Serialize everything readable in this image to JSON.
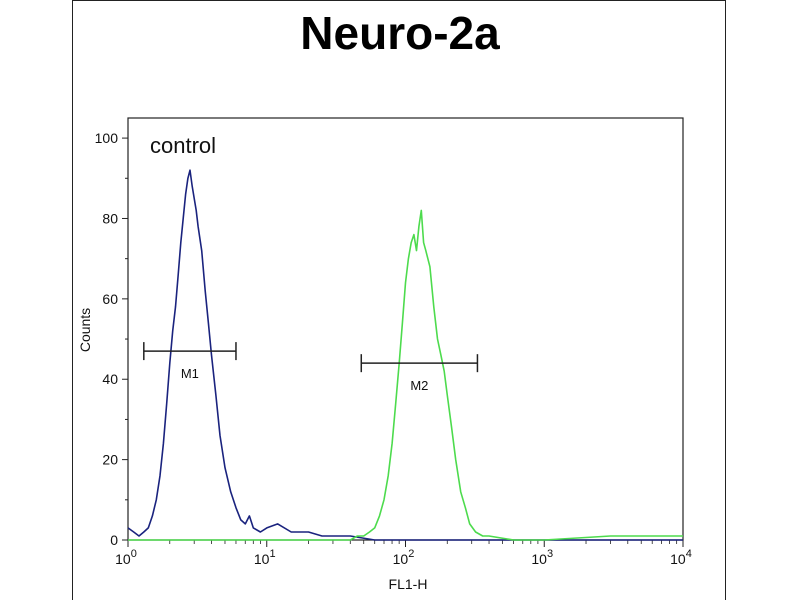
{
  "chart_data": {
    "type": "line",
    "title": "Neuro-2a",
    "xlabel": "FL1-H",
    "ylabel": "Counts",
    "xscale": "log",
    "xlim": [
      1,
      10000
    ],
    "ylim": [
      0,
      105
    ],
    "yticks": [
      "0",
      "20",
      "40",
      "60",
      "80",
      "100"
    ],
    "xticks": [
      {
        "base": "10",
        "exp": "0"
      },
      {
        "base": "10",
        "exp": "1"
      },
      {
        "base": "10",
        "exp": "2"
      },
      {
        "base": "10",
        "exp": "3"
      },
      {
        "base": "10",
        "exp": "4"
      }
    ],
    "annotation": "control",
    "series": [
      {
        "color": "#1a237e",
        "points": [
          [
            1.0,
            3
          ],
          [
            1.1,
            2
          ],
          [
            1.2,
            1
          ],
          [
            1.3,
            2
          ],
          [
            1.4,
            3
          ],
          [
            1.5,
            6
          ],
          [
            1.6,
            10
          ],
          [
            1.7,
            16
          ],
          [
            1.8,
            24
          ],
          [
            1.9,
            34
          ],
          [
            2.0,
            44
          ],
          [
            2.1,
            52
          ],
          [
            2.2,
            58
          ],
          [
            2.3,
            66
          ],
          [
            2.4,
            74
          ],
          [
            2.5,
            80
          ],
          [
            2.6,
            86
          ],
          [
            2.7,
            90
          ],
          [
            2.8,
            92
          ],
          [
            2.9,
            88
          ],
          [
            3.0,
            85
          ],
          [
            3.1,
            82
          ],
          [
            3.2,
            78
          ],
          [
            3.4,
            72
          ],
          [
            3.6,
            62
          ],
          [
            3.8,
            54
          ],
          [
            4.0,
            46
          ],
          [
            4.3,
            36
          ],
          [
            4.6,
            26
          ],
          [
            5.0,
            18
          ],
          [
            5.5,
            12
          ],
          [
            6.0,
            8
          ],
          [
            6.5,
            5
          ],
          [
            7.0,
            4
          ],
          [
            7.5,
            6
          ],
          [
            8.0,
            3
          ],
          [
            9.0,
            2
          ],
          [
            10,
            3
          ],
          [
            12,
            4
          ],
          [
            15,
            2
          ],
          [
            20,
            2
          ],
          [
            25,
            1
          ],
          [
            30,
            1
          ],
          [
            40,
            1
          ],
          [
            60,
            0
          ],
          [
            100,
            0
          ],
          [
            1000,
            0
          ],
          [
            10000,
            0
          ]
        ]
      },
      {
        "color": "#4ddb4d",
        "points": [
          [
            1.0,
            0
          ],
          [
            10,
            0
          ],
          [
            40,
            0
          ],
          [
            45,
            1
          ],
          [
            50,
            1
          ],
          [
            55,
            2
          ],
          [
            60,
            3
          ],
          [
            65,
            6
          ],
          [
            70,
            10
          ],
          [
            75,
            16
          ],
          [
            80,
            24
          ],
          [
            85,
            34
          ],
          [
            90,
            44
          ],
          [
            95,
            54
          ],
          [
            100,
            64
          ],
          [
            105,
            70
          ],
          [
            110,
            74
          ],
          [
            115,
            76
          ],
          [
            120,
            72
          ],
          [
            125,
            78
          ],
          [
            130,
            82
          ],
          [
            135,
            74
          ],
          [
            140,
            72
          ],
          [
            150,
            68
          ],
          [
            160,
            58
          ],
          [
            170,
            50
          ],
          [
            180,
            46
          ],
          [
            190,
            42
          ],
          [
            200,
            36
          ],
          [
            215,
            28
          ],
          [
            230,
            20
          ],
          [
            250,
            12
          ],
          [
            270,
            8
          ],
          [
            290,
            4
          ],
          [
            320,
            2
          ],
          [
            360,
            1
          ],
          [
            400,
            1
          ],
          [
            600,
            0
          ],
          [
            1000,
            0
          ],
          [
            3000,
            1
          ],
          [
            10000,
            1
          ]
        ]
      }
    ],
    "markers": [
      {
        "label": "M1",
        "x_start": 1.3,
        "x_end": 6.0,
        "y": 47
      },
      {
        "label": "M2",
        "x_start": 48,
        "x_end": 330,
        "y": 44
      }
    ]
  }
}
